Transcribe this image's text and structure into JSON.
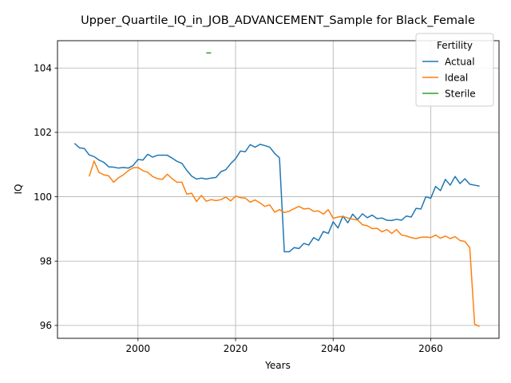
{
  "chart_data": {
    "type": "line",
    "title": "Upper_Quartile_IQ_in_JOB_ADVANCEMENT_Sample for Black_Female",
    "xlabel": "Years",
    "ylabel": "IQ",
    "xlim": [
      1983.5,
      2074
    ],
    "ylim": [
      95.6,
      104.85
    ],
    "xticks": [
      2000,
      2020,
      2040,
      2060
    ],
    "yticks": [
      96,
      98,
      100,
      102,
      104
    ],
    "grid": true,
    "legend": {
      "title": "Fertility",
      "placement": "top-right"
    },
    "series": [
      {
        "name": "Actual",
        "color": "#1f77b4",
        "x": [
          1987,
          1988,
          1989,
          1990,
          1991,
          1992,
          1993,
          1994,
          1995,
          1996,
          1997,
          1998,
          1999,
          2000,
          2001,
          2002,
          2003,
          2004,
          2005,
          2006,
          2007,
          2008,
          2009,
          2010,
          2011,
          2012,
          2013,
          2014,
          2015,
          2016,
          2017,
          2018,
          2019,
          2020,
          2021,
          2022,
          2023,
          2024,
          2025,
          2026,
          2027,
          2028,
          2029,
          2030,
          2031,
          2032,
          2033,
          2034,
          2035,
          2036,
          2037,
          2038,
          2039,
          2040,
          2041,
          2042,
          2043,
          2044,
          2045,
          2046,
          2047,
          2048,
          2049,
          2050,
          2051,
          2052,
          2053,
          2054,
          2055,
          2056,
          2057,
          2058,
          2059,
          2060,
          2061,
          2062,
          2063,
          2064,
          2065,
          2066,
          2067,
          2068,
          2069,
          2070
        ],
        "y": [
          101.66,
          101.52,
          101.5,
          101.3,
          101.25,
          101.14,
          101.07,
          100.93,
          100.92,
          100.89,
          100.91,
          100.89,
          100.97,
          101.16,
          101.14,
          101.32,
          101.23,
          101.29,
          101.29,
          101.29,
          101.2,
          101.1,
          101.04,
          100.82,
          100.64,
          100.55,
          100.58,
          100.55,
          100.58,
          100.6,
          100.78,
          100.84,
          101.03,
          101.18,
          101.42,
          101.4,
          101.62,
          101.54,
          101.63,
          101.59,
          101.54,
          101.35,
          101.21,
          98.29,
          98.29,
          98.42,
          98.39,
          98.55,
          98.5,
          98.73,
          98.64,
          98.92,
          98.86,
          99.22,
          99.03,
          99.4,
          99.19,
          99.46,
          99.29,
          99.47,
          99.35,
          99.43,
          99.32,
          99.34,
          99.27,
          99.26,
          99.3,
          99.27,
          99.4,
          99.37,
          99.64,
          99.62,
          100.0,
          99.95,
          100.32,
          100.19,
          100.54,
          100.36,
          100.63,
          100.41,
          100.56,
          100.39,
          100.36,
          100.33
        ]
      },
      {
        "name": "Ideal",
        "color": "#ff7f0e",
        "x": [
          1990,
          1991,
          1992,
          1993,
          1994,
          1995,
          1996,
          1997,
          1998,
          1999,
          2000,
          2001,
          2002,
          2003,
          2004,
          2005,
          2006,
          2007,
          2008,
          2009,
          2010,
          2011,
          2012,
          2013,
          2014,
          2015,
          2016,
          2017,
          2018,
          2019,
          2020,
          2021,
          2022,
          2023,
          2024,
          2025,
          2026,
          2027,
          2028,
          2029,
          2030,
          2031,
          2032,
          2033,
          2034,
          2035,
          2036,
          2037,
          2038,
          2039,
          2040,
          2041,
          2042,
          2043,
          2044,
          2045,
          2046,
          2047,
          2048,
          2049,
          2050,
          2051,
          2052,
          2053,
          2054,
          2055,
          2056,
          2057,
          2058,
          2059,
          2060,
          2061,
          2062,
          2063,
          2064,
          2065,
          2066,
          2067,
          2068,
          2069,
          2070
        ],
        "y": [
          100.63,
          101.11,
          100.76,
          100.68,
          100.65,
          100.45,
          100.59,
          100.68,
          100.81,
          100.9,
          100.91,
          100.81,
          100.76,
          100.63,
          100.56,
          100.54,
          100.7,
          100.56,
          100.45,
          100.45,
          100.08,
          100.11,
          99.85,
          100.04,
          99.86,
          99.91,
          99.88,
          99.91,
          99.99,
          99.87,
          100.02,
          99.97,
          99.96,
          99.83,
          99.9,
          99.81,
          99.7,
          99.75,
          99.52,
          99.6,
          99.51,
          99.55,
          99.63,
          99.7,
          99.62,
          99.64,
          99.55,
          99.56,
          99.46,
          99.6,
          99.33,
          99.37,
          99.39,
          99.34,
          99.3,
          99.28,
          99.13,
          99.1,
          99.01,
          99.02,
          98.91,
          98.98,
          98.86,
          98.98,
          98.81,
          98.78,
          98.73,
          98.7,
          98.74,
          98.75,
          98.73,
          98.81,
          98.71,
          98.78,
          98.7,
          98.76,
          98.64,
          98.61,
          98.42,
          96.04,
          95.97
        ]
      },
      {
        "name": "Sterile",
        "color": "#2ca02c",
        "x": [
          2014,
          2015
        ],
        "y": [
          104.47,
          104.47
        ]
      }
    ]
  }
}
